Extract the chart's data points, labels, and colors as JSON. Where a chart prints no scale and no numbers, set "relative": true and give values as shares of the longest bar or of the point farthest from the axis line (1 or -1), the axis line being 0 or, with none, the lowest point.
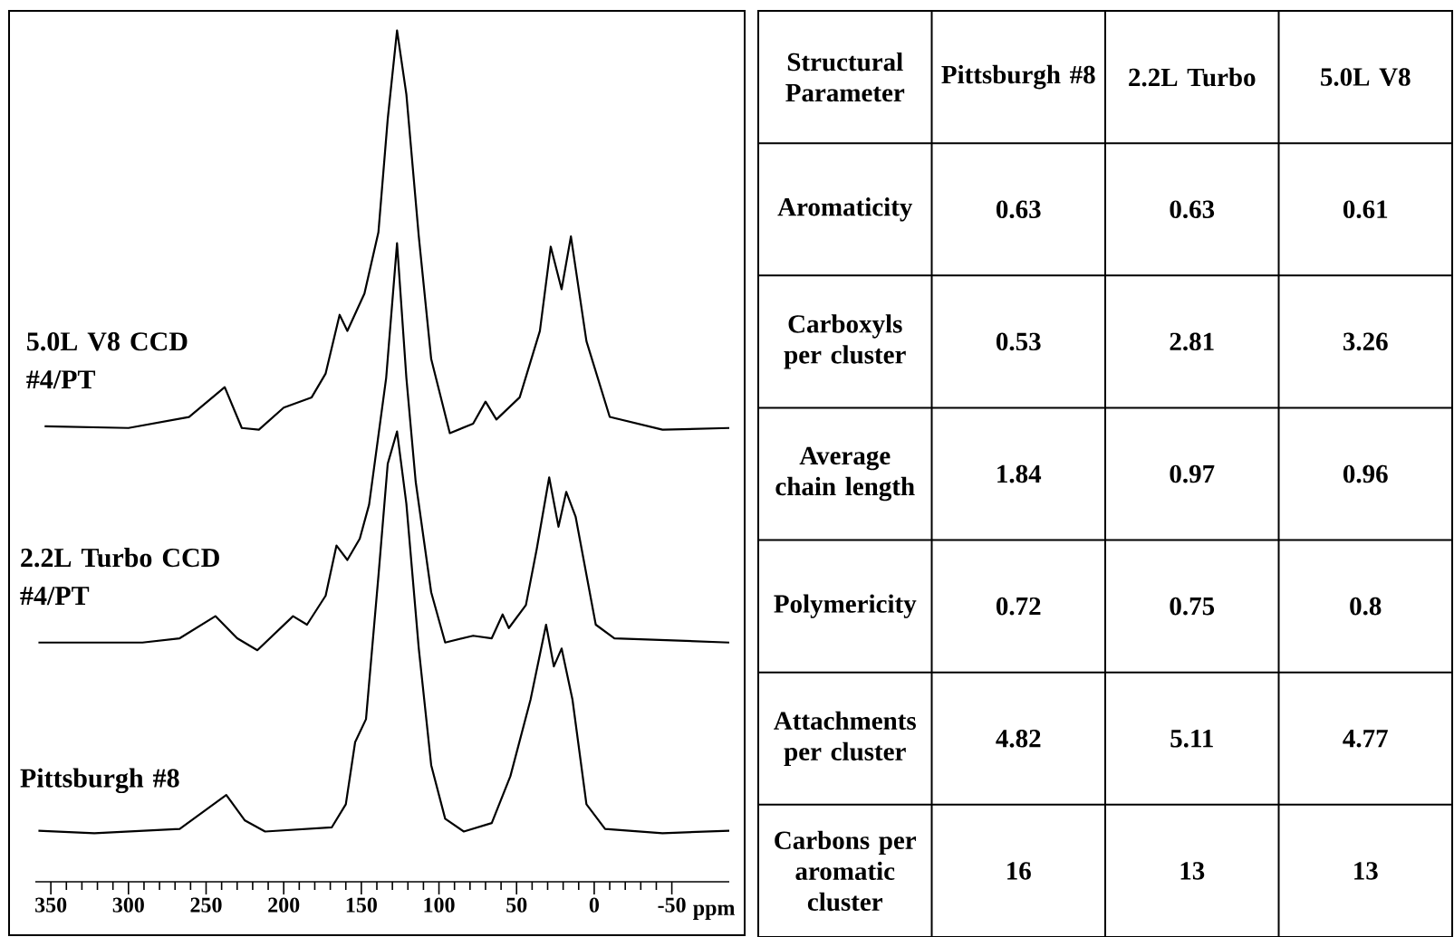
{
  "chart_data": [
    {
      "type": "line",
      "xlabel": "ppm",
      "relative": true,
      "xlim": [
        360,
        -87
      ],
      "xticks": [
        350,
        300,
        250,
        200,
        150,
        100,
        50,
        0,
        -50
      ],
      "series": [
        {
          "name": "5.0L V8 CCD #4/PT",
          "color": "#000000",
          "x": [
            354,
            300,
            261,
            238,
            227,
            216,
            200,
            182,
            173,
            164,
            159,
            148,
            139,
            133,
            127,
            121,
            113,
            105,
            93,
            78,
            70,
            63,
            48,
            35,
            28,
            21,
            15,
            5,
            -10,
            -44,
            -87
          ],
          "values": [
            0.535,
            0.533,
            0.546,
            0.581,
            0.533,
            0.531,
            0.557,
            0.569,
            0.597,
            0.666,
            0.647,
            0.691,
            0.763,
            0.896,
            1.0,
            0.925,
            0.758,
            0.614,
            0.527,
            0.538,
            0.564,
            0.543,
            0.569,
            0.647,
            0.746,
            0.696,
            0.758,
            0.635,
            0.546,
            0.531,
            0.533
          ]
        },
        {
          "name": "2.2L Turbo CCD #4/PT",
          "color": "#000000",
          "x": [
            358,
            291,
            267,
            244,
            230,
            217,
            194,
            185,
            173,
            166,
            159,
            151,
            145,
            134,
            127,
            121,
            115,
            105,
            96,
            78,
            66,
            59,
            55,
            44,
            37,
            29,
            23,
            18,
            12,
            -1,
            -13,
            -87
          ],
          "values": [
            0.281,
            0.281,
            0.286,
            0.312,
            0.286,
            0.272,
            0.312,
            0.302,
            0.336,
            0.395,
            0.378,
            0.403,
            0.443,
            0.592,
            0.75,
            0.592,
            0.47,
            0.34,
            0.281,
            0.289,
            0.286,
            0.314,
            0.298,
            0.325,
            0.391,
            0.475,
            0.417,
            0.458,
            0.429,
            0.302,
            0.286,
            0.281
          ]
        },
        {
          "name": "Pittsburgh #8",
          "color": "#000000",
          "x": [
            358,
            322,
            267,
            249,
            237,
            225,
            212,
            169,
            160,
            154,
            147,
            139,
            133,
            127,
            121,
            113,
            105,
            96,
            84,
            66,
            54,
            41,
            31,
            26,
            21,
            14,
            5,
            -7,
            -44,
            -87
          ],
          "values": [
            0.06,
            0.057,
            0.062,
            0.086,
            0.102,
            0.072,
            0.059,
            0.064,
            0.091,
            0.164,
            0.191,
            0.359,
            0.491,
            0.529,
            0.444,
            0.274,
            0.137,
            0.074,
            0.059,
            0.069,
            0.124,
            0.214,
            0.302,
            0.253,
            0.274,
            0.214,
            0.091,
            0.062,
            0.057,
            0.06
          ]
        }
      ]
    },
    {
      "type": "heatmap",
      "ylabel": "Structural Parameter",
      "categories": [
        "Pittsburgh #8",
        "2.2L Turbo",
        "5.0L V8"
      ],
      "y_categories": [
        "Aromaticity",
        "Carboxyls per cluster",
        "Average chain length",
        "Polymericity",
        "Attachments per cluster",
        "Carbons per aromatic cluster"
      ],
      "cells": [
        [
          0.63,
          0.63,
          0.61
        ],
        [
          0.53,
          2.81,
          3.26
        ],
        [
          1.84,
          0.97,
          0.96
        ],
        [
          0.72,
          0.75,
          0.8
        ],
        [
          4.82,
          5.11,
          4.77
        ],
        [
          16,
          13,
          13
        ]
      ],
      "data_labels": true
    }
  ]
}
